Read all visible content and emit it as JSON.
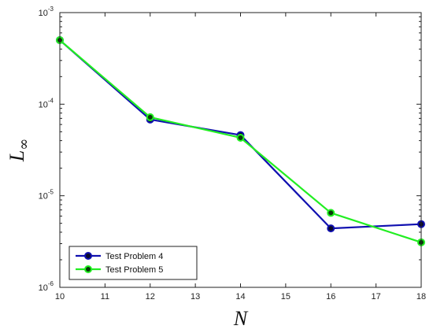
{
  "chart_data": {
    "type": "line",
    "xlabel": "N",
    "ylabel_main": "L",
    "ylabel_sub": "∞",
    "xlim": [
      10,
      18
    ],
    "ylim": [
      1e-06,
      0.001
    ],
    "yscale": "log",
    "grid": false,
    "legend_position": "bottom-left",
    "x_ticks": [
      {
        "value": 10,
        "label": "10"
      },
      {
        "value": 11,
        "label": "11"
      },
      {
        "value": 12,
        "label": "12"
      },
      {
        "value": 13,
        "label": "13"
      },
      {
        "value": 14,
        "label": "14"
      },
      {
        "value": 15,
        "label": "15"
      },
      {
        "value": 16,
        "label": "16"
      },
      {
        "value": 17,
        "label": "17"
      },
      {
        "value": 18,
        "label": "18"
      }
    ],
    "y_ticks": [
      {
        "value": 1e-06,
        "base": "10",
        "exp": "-6"
      },
      {
        "value": 1e-05,
        "base": "10",
        "exp": "-5"
      },
      {
        "value": 0.0001,
        "base": "10",
        "exp": "-4"
      },
      {
        "value": 0.001,
        "base": "10",
        "exp": "-3"
      }
    ],
    "series": [
      {
        "name": "Test Problem 4",
        "color": "#1010b0",
        "marker_face": "#0a0a2a",
        "x": [
          10,
          12,
          14,
          16,
          18
        ],
        "y": [
          0.0005,
          6.8e-05,
          4.6e-05,
          4.4e-06,
          4.9e-06
        ]
      },
      {
        "name": "Test Problem 5",
        "color": "#22ee22",
        "marker_face": "#0a3a0a",
        "x": [
          10,
          12,
          14,
          16,
          18
        ],
        "y": [
          0.0005,
          7.2e-05,
          4.3e-05,
          6.5e-06,
          3.1e-06
        ]
      }
    ]
  }
}
